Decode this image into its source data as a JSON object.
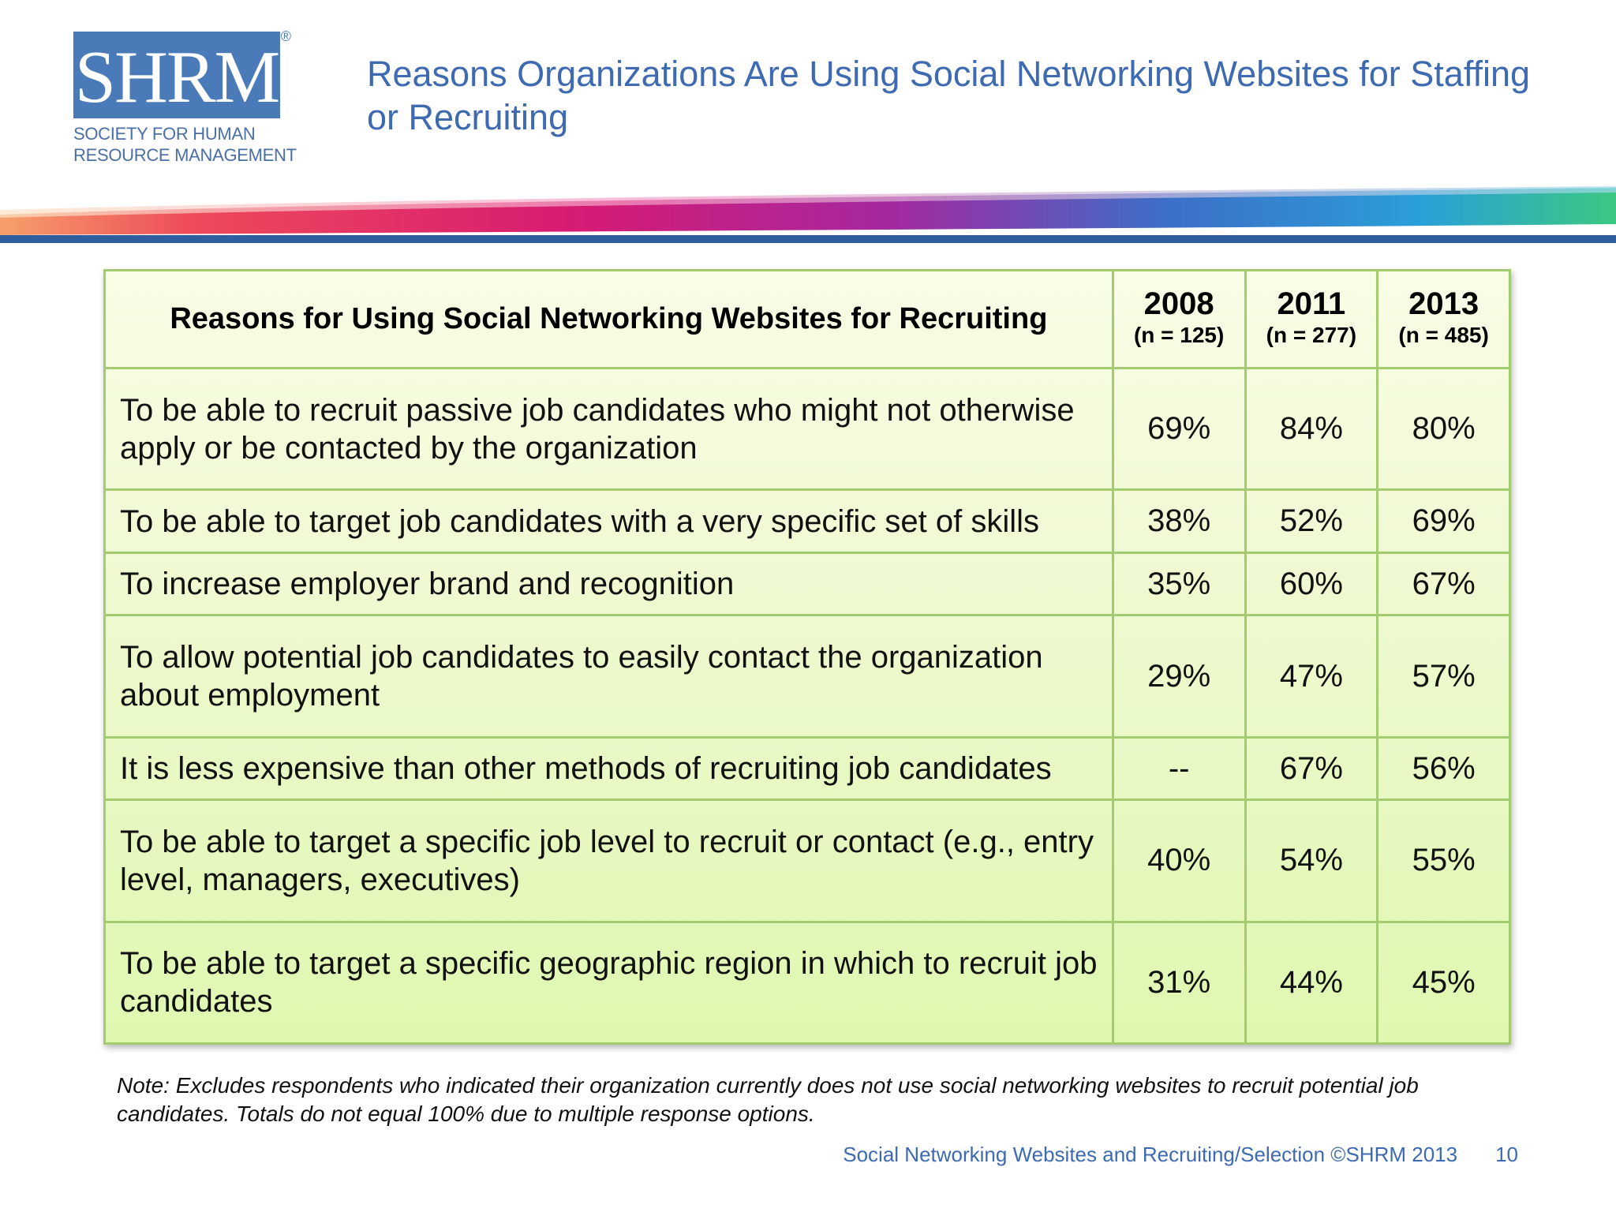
{
  "logo": {
    "letters": "SHRM",
    "registered": "®",
    "line1": "SOCIETY FOR HUMAN",
    "line2": "RESOURCE MANAGEMENT"
  },
  "title": "Reasons Organizations Are Using Social Networking Websites for Staffing or Recruiting",
  "table": {
    "header": {
      "reason": "Reasons for Using Social Networking Websites for Recruiting",
      "years": [
        {
          "year": "2008",
          "n": "(n = 125)"
        },
        {
          "year": "2011",
          "n": "(n = 277)"
        },
        {
          "year": "2013",
          "n": "(n = 485)"
        }
      ]
    },
    "rows": [
      {
        "reason": "To be able to recruit passive job candidates who might not otherwise apply or be contacted by the organization",
        "v2008": "69%",
        "v2011": "84%",
        "v2013": "80%"
      },
      {
        "reason": "To be able to target job candidates with a very specific set of skills",
        "v2008": "38%",
        "v2011": "52%",
        "v2013": "69%"
      },
      {
        "reason": "To increase employer brand and recognition",
        "v2008": "35%",
        "v2011": "60%",
        "v2013": "67%"
      },
      {
        "reason": "To allow potential job candidates to easily contact the organization about employment",
        "v2008": "29%",
        "v2011": "47%",
        "v2013": "57%"
      },
      {
        "reason": "It is less expensive than other methods of recruiting job candidates",
        "v2008": "--",
        "v2011": "67%",
        "v2013": "56%"
      },
      {
        "reason": "To be able to target a specific job level to recruit or contact (e.g., entry level, managers, executives)",
        "v2008": "40%",
        "v2011": "54%",
        "v2013": "55%"
      },
      {
        "reason": "To be able to target a specific geographic region in which to recruit job candidates",
        "v2008": "31%",
        "v2011": "44%",
        "v2013": "45%"
      }
    ]
  },
  "note": "Note: Excludes respondents who indicated their organization currently does not use social networking websites to recruit potential job candidates.  Totals do not equal 100% due to multiple response options.",
  "footer": {
    "source": "Social Networking Websites and Recruiting/Selection ©SHRM 2013",
    "page": "10"
  },
  "colors": {
    "brand_blue": "#4a7ab8",
    "title_blue": "#3d6ab0",
    "table_border": "#a3cb70"
  }
}
